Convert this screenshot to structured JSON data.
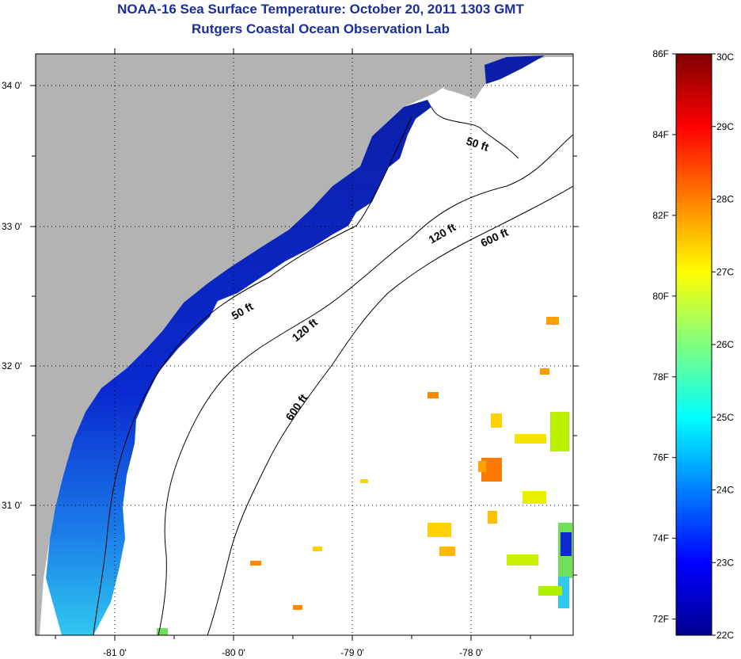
{
  "title": {
    "line1": "NOAA-16 Sea Surface Temperature:  October 20, 2011 1303 GMT",
    "line2": "Rutgers Coastal Ocean Observation Lab"
  },
  "map": {
    "lat_ticks": [
      "34 0'",
      "33 0'",
      "32 0'",
      "31 0'"
    ],
    "lon_ticks": [
      "-81 0'",
      "-80 0'",
      "-79 0'",
      "-78 0'"
    ],
    "contours": [
      "50 ft",
      "120 ft",
      "600 ft",
      "50 ft",
      "120 ft",
      "600 ft"
    ],
    "land_color": "#b3b3b3",
    "no_data_color": "#ffffff"
  },
  "colorbar": {
    "min_c": 22,
    "max_c": 30,
    "celsius_labels": [
      "30C",
      "29C",
      "28C",
      "27C",
      "26C",
      "25C",
      "24C",
      "23C",
      "22C"
    ],
    "fahrenheit_labels": [
      "86F",
      "84F",
      "82F",
      "80F",
      "78F",
      "76F",
      "74F",
      "72F"
    ]
  }
}
